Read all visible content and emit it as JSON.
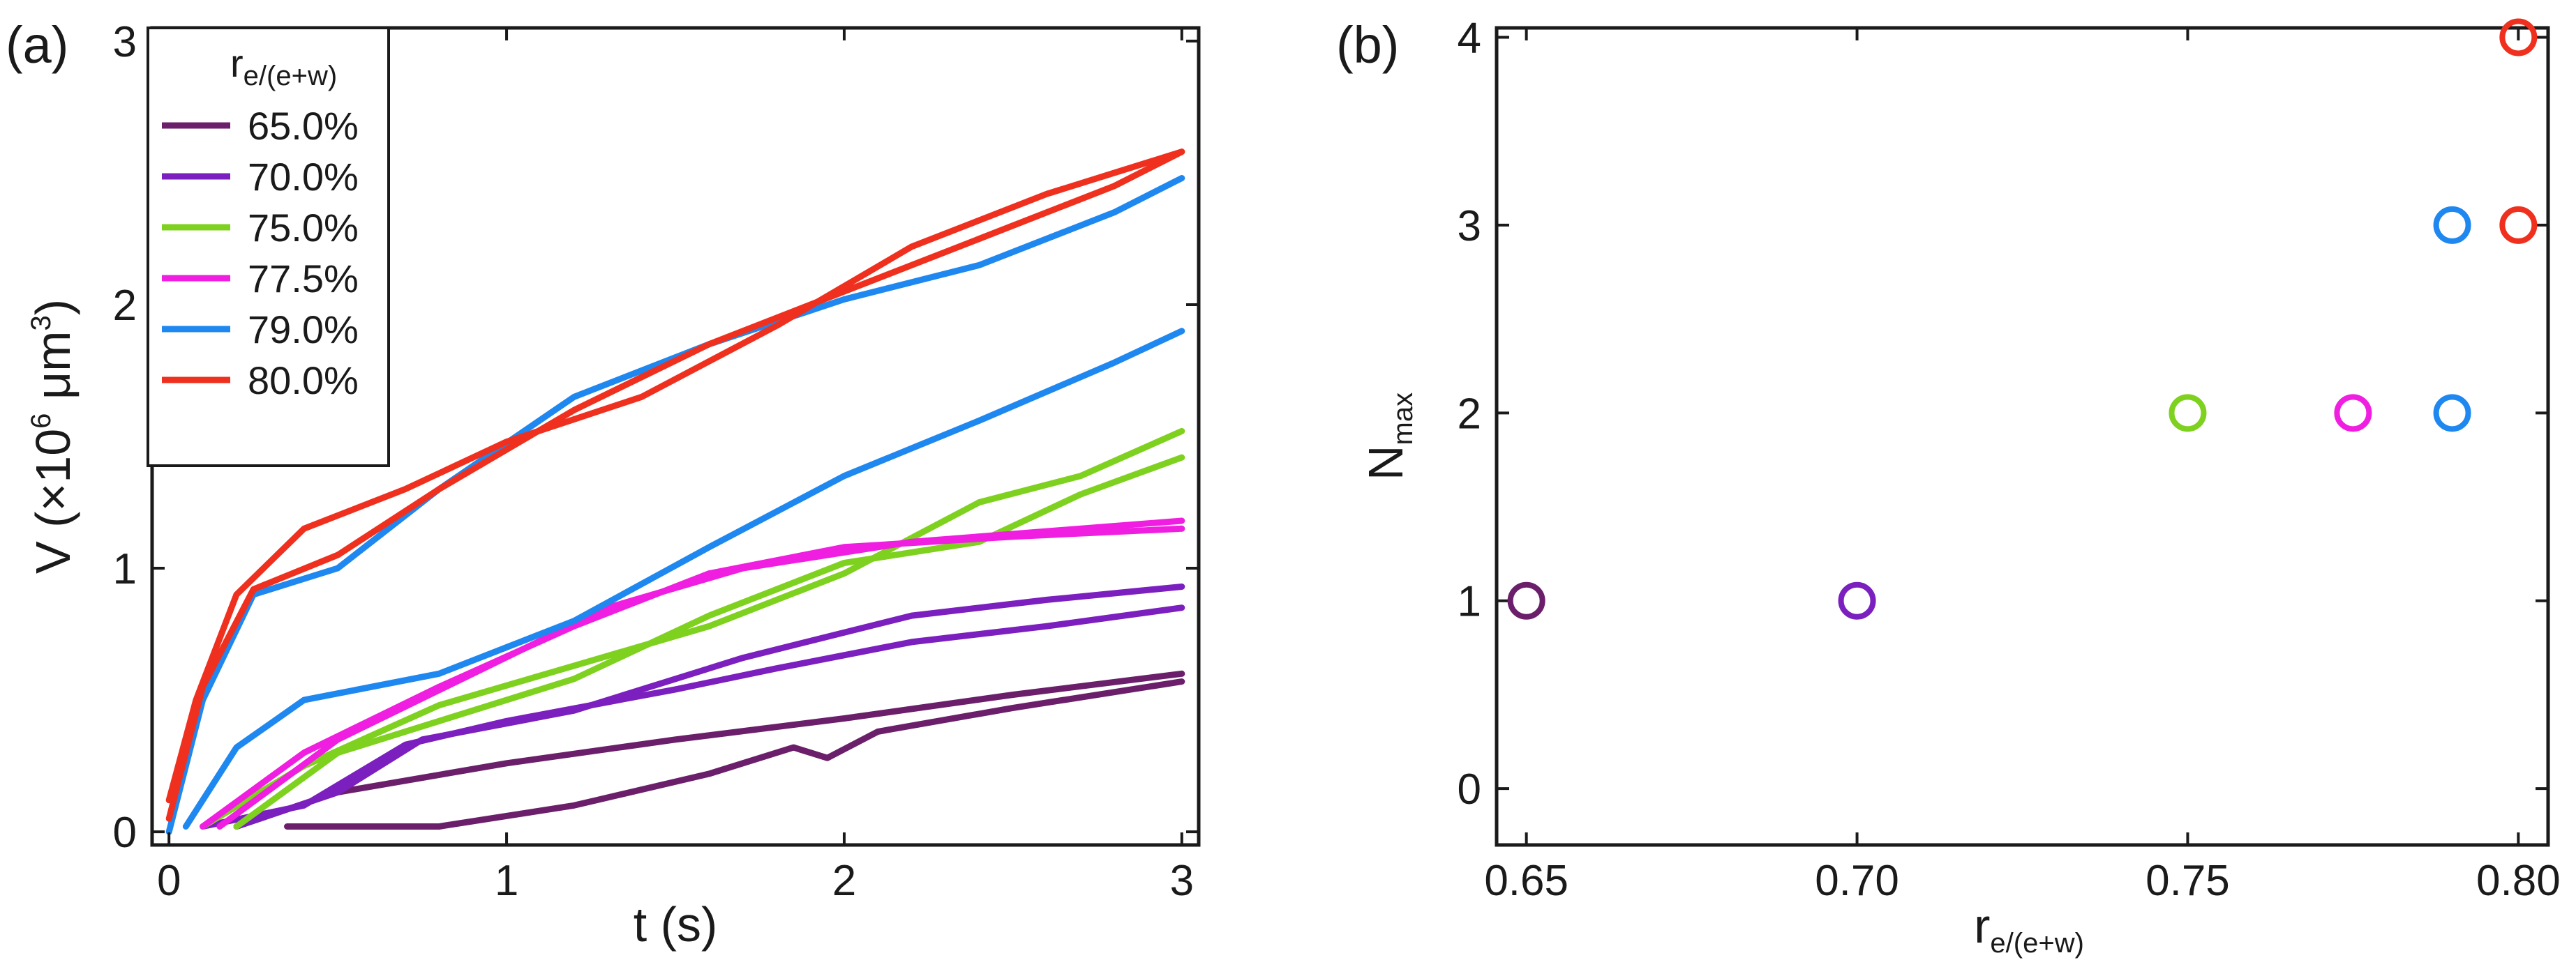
{
  "chart_data": [
    {
      "type": "line",
      "panel_label": "(a)",
      "xlabel": "t (s)",
      "ylabel_prefix": "V (×10",
      "ylabel_exp": "6",
      "ylabel_unit": " μm",
      "ylabel_unit_exp": "3",
      "ylabel_suffix": ")",
      "xlim": [
        -0.05,
        3.05
      ],
      "ylim": [
        -0.05,
        3.05
      ],
      "xticks": [
        0,
        1,
        2,
        3
      ],
      "yticks": [
        0,
        1,
        2,
        3
      ],
      "legend_title_main": "r",
      "legend_title_sub": "e/(e+w)",
      "series": [
        {
          "name": "65.0%",
          "color": "#6b1f6b",
          "lines": [
            [
              [
                0.35,
                0.02
              ],
              [
                0.8,
                0.02
              ],
              [
                1.2,
                0.1
              ],
              [
                1.6,
                0.22
              ],
              [
                1.85,
                0.32
              ],
              [
                1.95,
                0.28
              ],
              [
                2.1,
                0.38
              ],
              [
                2.5,
                0.47
              ],
              [
                3.0,
                0.57
              ]
            ],
            [
              [
                0.2,
                0.02
              ],
              [
                0.5,
                0.15
              ],
              [
                1.0,
                0.26
              ],
              [
                1.5,
                0.35
              ],
              [
                2.0,
                0.43
              ],
              [
                2.5,
                0.52
              ],
              [
                3.0,
                0.6
              ]
            ]
          ]
        },
        {
          "name": "70.0%",
          "color": "#7b1fbf",
          "lines": [
            [
              [
                0.1,
                0.02
              ],
              [
                0.4,
                0.1
              ],
              [
                0.7,
                0.33
              ],
              [
                1.0,
                0.42
              ],
              [
                1.5,
                0.54
              ],
              [
                1.8,
                0.62
              ],
              [
                2.2,
                0.72
              ],
              [
                2.6,
                0.78
              ],
              [
                3.0,
                0.85
              ]
            ],
            [
              [
                0.2,
                0.02
              ],
              [
                0.5,
                0.15
              ],
              [
                0.75,
                0.35
              ],
              [
                1.2,
                0.46
              ],
              [
                1.7,
                0.66
              ],
              [
                2.2,
                0.82
              ],
              [
                2.6,
                0.88
              ],
              [
                3.0,
                0.93
              ]
            ]
          ]
        },
        {
          "name": "75.0%",
          "color": "#7fd11f",
          "lines": [
            [
              [
                0.1,
                0.02
              ],
              [
                0.4,
                0.25
              ],
              [
                0.8,
                0.48
              ],
              [
                1.2,
                0.63
              ],
              [
                1.6,
                0.78
              ],
              [
                2.0,
                0.98
              ],
              [
                2.4,
                1.25
              ],
              [
                2.7,
                1.35
              ],
              [
                3.0,
                1.52
              ]
            ],
            [
              [
                0.2,
                0.02
              ],
              [
                0.5,
                0.3
              ],
              [
                0.8,
                0.42
              ],
              [
                1.2,
                0.58
              ],
              [
                1.6,
                0.82
              ],
              [
                2.0,
                1.02
              ],
              [
                2.4,
                1.1
              ],
              [
                2.7,
                1.28
              ],
              [
                3.0,
                1.42
              ]
            ]
          ]
        },
        {
          "name": "77.5%",
          "color": "#f01ee0",
          "lines": [
            [
              [
                0.1,
                0.02
              ],
              [
                0.4,
                0.3
              ],
              [
                0.8,
                0.55
              ],
              [
                1.2,
                0.78
              ],
              [
                1.6,
                0.98
              ],
              [
                2.0,
                1.08
              ],
              [
                2.5,
                1.12
              ],
              [
                3.0,
                1.15
              ]
            ],
            [
              [
                0.15,
                0.02
              ],
              [
                0.5,
                0.35
              ],
              [
                0.9,
                0.6
              ],
              [
                1.3,
                0.85
              ],
              [
                1.7,
                1.0
              ],
              [
                2.2,
                1.1
              ],
              [
                3.0,
                1.18
              ]
            ]
          ]
        },
        {
          "name": "79.0%",
          "color": "#1e88f0",
          "lines": [
            [
              [
                0.05,
                0.02
              ],
              [
                0.2,
                0.32
              ],
              [
                0.4,
                0.5
              ],
              [
                0.8,
                0.6
              ],
              [
                1.2,
                0.8
              ],
              [
                1.6,
                1.08
              ],
              [
                2.0,
                1.35
              ],
              [
                2.4,
                1.56
              ],
              [
                2.8,
                1.78
              ],
              [
                3.0,
                1.9
              ]
            ],
            [
              [
                0.0,
                0.0
              ],
              [
                0.1,
                0.5
              ],
              [
                0.25,
                0.9
              ],
              [
                0.5,
                1.0
              ],
              [
                0.8,
                1.3
              ],
              [
                1.2,
                1.65
              ],
              [
                1.6,
                1.85
              ],
              [
                2.0,
                2.02
              ],
              [
                2.4,
                2.15
              ],
              [
                2.8,
                2.35
              ],
              [
                3.0,
                2.48
              ]
            ]
          ]
        },
        {
          "name": "80.0%",
          "color": "#f0301e",
          "lines": [
            [
              [
                0.0,
                0.05
              ],
              [
                0.1,
                0.55
              ],
              [
                0.25,
                0.92
              ],
              [
                0.5,
                1.05
              ],
              [
                0.8,
                1.3
              ],
              [
                1.2,
                1.6
              ],
              [
                1.6,
                1.85
              ],
              [
                2.0,
                2.05
              ],
              [
                2.4,
                2.25
              ],
              [
                2.8,
                2.45
              ],
              [
                3.0,
                2.58
              ]
            ],
            [
              [
                0.0,
                0.12
              ],
              [
                0.08,
                0.5
              ],
              [
                0.2,
                0.9
              ],
              [
                0.4,
                1.15
              ],
              [
                0.7,
                1.3
              ],
              [
                1.0,
                1.48
              ],
              [
                1.4,
                1.65
              ],
              [
                1.8,
                1.92
              ],
              [
                2.2,
                2.22
              ],
              [
                2.6,
                2.42
              ],
              [
                3.0,
                2.58
              ]
            ]
          ]
        }
      ]
    },
    {
      "type": "scatter",
      "panel_label": "(b)",
      "xlabel_main": "r",
      "xlabel_sub": "e/(e+w)",
      "ylabel_main": "N",
      "ylabel_sub": "max",
      "xlim": [
        0.6455,
        0.8045
      ],
      "ylim": [
        -0.3,
        4.05
      ],
      "xticks": [
        "0.65",
        "0.70",
        "0.75",
        "0.80"
      ],
      "yticks": [
        0,
        1,
        2,
        3,
        4
      ],
      "points": [
        {
          "x": 0.65,
          "y": 1,
          "color": "#6b1f6b"
        },
        {
          "x": 0.7,
          "y": 1,
          "color": "#7b1fbf"
        },
        {
          "x": 0.75,
          "y": 2,
          "color": "#7fd11f"
        },
        {
          "x": 0.775,
          "y": 2,
          "color": "#f01ee0"
        },
        {
          "x": 0.79,
          "y": 2,
          "color": "#1e88f0"
        },
        {
          "x": 0.79,
          "y": 3,
          "color": "#1e88f0"
        },
        {
          "x": 0.8,
          "y": 3,
          "color": "#f0301e"
        },
        {
          "x": 0.8,
          "y": 4,
          "color": "#f0301e"
        }
      ]
    }
  ]
}
